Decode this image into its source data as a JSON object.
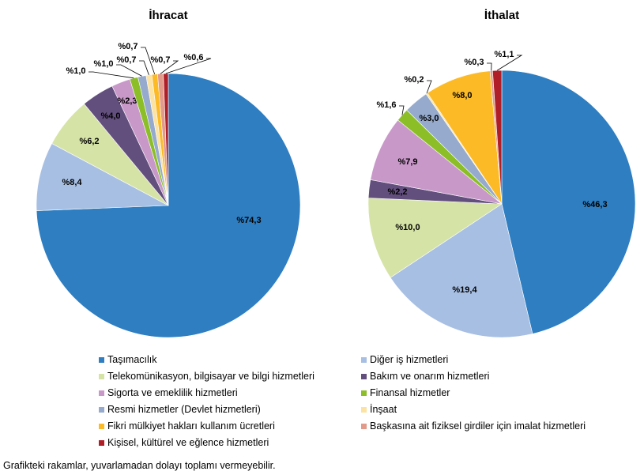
{
  "chart_data": [
    {
      "type": "pie",
      "title": "İhracat",
      "categories": [
        "Taşımacılık",
        "Diğer iş hizmetleri",
        "Telekomünikasyon, bilgisayar ve bilgi hizmetleri",
        "Bakım ve onarım hizmetleri",
        "Sigorta ve emeklilik hizmetleri",
        "Finansal hizmetler",
        "Resmi hizmetler (Devlet hizmetleri)",
        "İnşaat",
        "Fikri mülkiyet hakları kullanım ücretleri",
        "Başkasına ait fiziksel girdiler için imalat hizmetleri",
        "Kişisel, kültürel ve eğlence hizmetleri"
      ],
      "values": [
        74.3,
        8.4,
        6.2,
        4.0,
        2.3,
        1.0,
        1.0,
        0.7,
        0.7,
        0.7,
        0.6
      ],
      "labels": [
        "%74,3",
        "%8,4",
        "%6,2",
        "%4,0",
        "%2,3",
        "%1,0",
        "%1,0",
        "%0,7",
        "%0,7",
        "%0,7",
        "%0,6"
      ]
    },
    {
      "type": "pie",
      "title": "İthalat",
      "categories": [
        "Taşımacılık",
        "Diğer iş hizmetleri",
        "Telekomünikasyon, bilgisayar ve bilgi hizmetleri",
        "Bakım ve onarım hizmetleri",
        "Sigorta ve emeklilik hizmetleri",
        "Finansal hizmetler",
        "Resmi hizmetler (Devlet hizmetleri)",
        "İnşaat",
        "Fikri mülkiyet hakları kullanım ücretleri",
        "Başkasına ait fiziksel girdiler için imalat hizmetleri",
        "Kişisel, kültürel ve eğlence hizmetleri"
      ],
      "values": [
        46.3,
        19.4,
        10.0,
        2.2,
        7.9,
        1.6,
        3.0,
        0.2,
        8.0,
        0.3,
        1.1
      ],
      "labels": [
        "%46,3",
        "%19,4",
        "%10,0",
        "%2,2",
        "%7,9",
        "%1,6",
        "%3,0",
        "%0,2",
        "%8,0",
        "%0,3",
        "%1,1"
      ]
    }
  ],
  "colors": [
    "#2E7EC1",
    "#A7BFE3",
    "#D5E3A6",
    "#634F7E",
    "#C898C9",
    "#8CBE28",
    "#95AACD",
    "#FCE3A3",
    "#FCBA26",
    "#E29B8A",
    "#B01E28"
  ],
  "legend": [
    "Taşımacılık",
    "Diğer iş hizmetleri",
    "Telekomünikasyon, bilgisayar ve bilgi hizmetleri",
    "Bakım ve onarım hizmetleri",
    "Sigorta ve emeklilik hizmetleri",
    "Finansal hizmetler",
    "Resmi hizmetler (Devlet hizmetleri)",
    "İnşaat",
    "Fikri mülkiyet hakları kullanım ücretleri",
    "Başkasına ait fiziksel girdiler için imalat hizmetleri",
    "Kişisel, kültürel ve eğlence hizmetleri"
  ],
  "legend_placement": "bottom",
  "note": "Grafikteki rakamlar, yuvarlamadan dolayı toplamı vermeyebilir."
}
